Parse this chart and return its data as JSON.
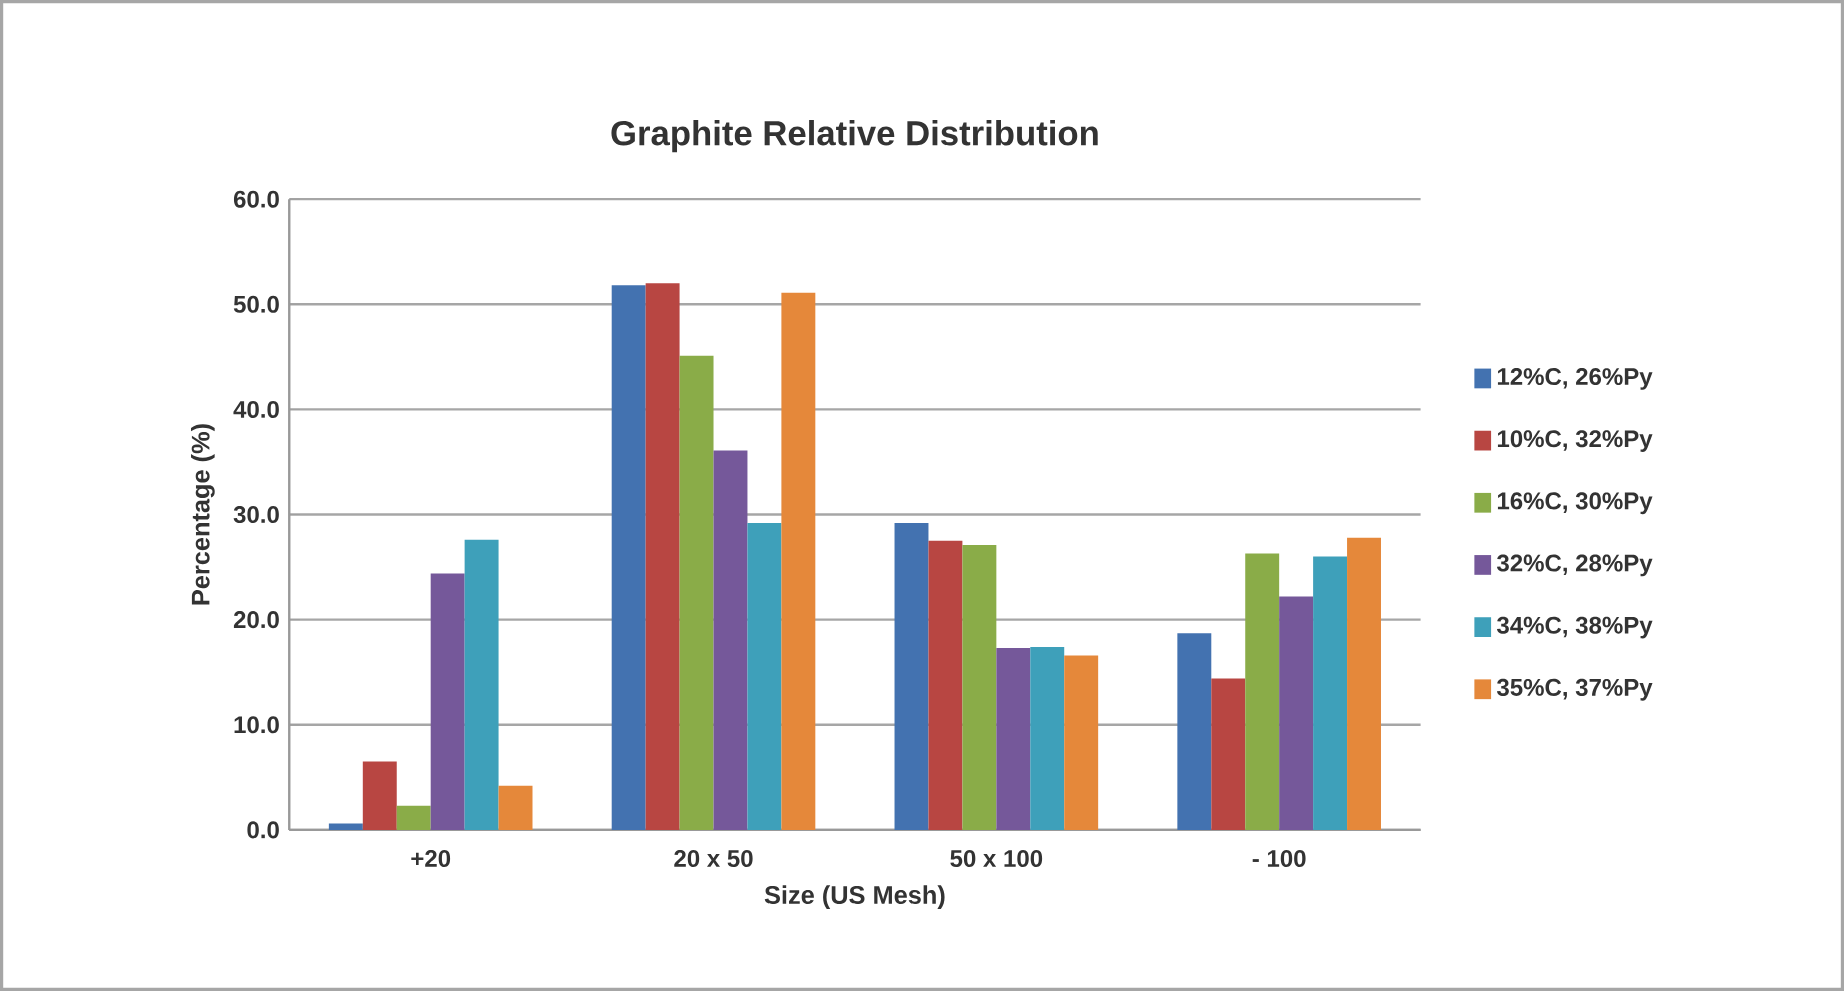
{
  "chart_data": {
    "type": "bar",
    "title": "Graphite Relative Distribution",
    "xlabel": "Size (US Mesh)",
    "ylabel": "Percentage (%)",
    "categories": [
      "+20",
      "20 x 50",
      "50 x 100",
      "- 100"
    ],
    "series": [
      {
        "name": "12%C, 26%Py",
        "color": "#4372b0",
        "values": [
          0.6,
          51.8,
          29.2,
          18.7
        ]
      },
      {
        "name": "10%C, 32%Py",
        "color": "#b84642",
        "values": [
          6.5,
          52.0,
          27.5,
          14.4
        ]
      },
      {
        "name": "16%C, 30%Py",
        "color": "#8aac48",
        "values": [
          2.3,
          45.1,
          27.1,
          26.3
        ]
      },
      {
        "name": "32%C, 28%Py",
        "color": "#75589a",
        "values": [
          24.4,
          36.1,
          17.3,
          22.2
        ]
      },
      {
        "name": "34%C, 38%Py",
        "color": "#3ea0ba",
        "values": [
          27.6,
          29.2,
          17.4,
          26.0
        ]
      },
      {
        "name": "35%C, 37%Py",
        "color": "#e5883a",
        "values": [
          4.2,
          51.1,
          16.6,
          27.8
        ]
      }
    ],
    "ylim": [
      0,
      60
    ],
    "yticks": [
      {
        "value": 0,
        "label": "0.0"
      },
      {
        "value": 10,
        "label": "10.0"
      },
      {
        "value": 20,
        "label": "20.0"
      },
      {
        "value": 30,
        "label": "30.0"
      },
      {
        "value": 40,
        "label": "40.0"
      },
      {
        "value": 50,
        "label": "50.0"
      },
      {
        "value": 60,
        "label": "60.0"
      }
    ],
    "grid": "y",
    "legend": "right"
  }
}
